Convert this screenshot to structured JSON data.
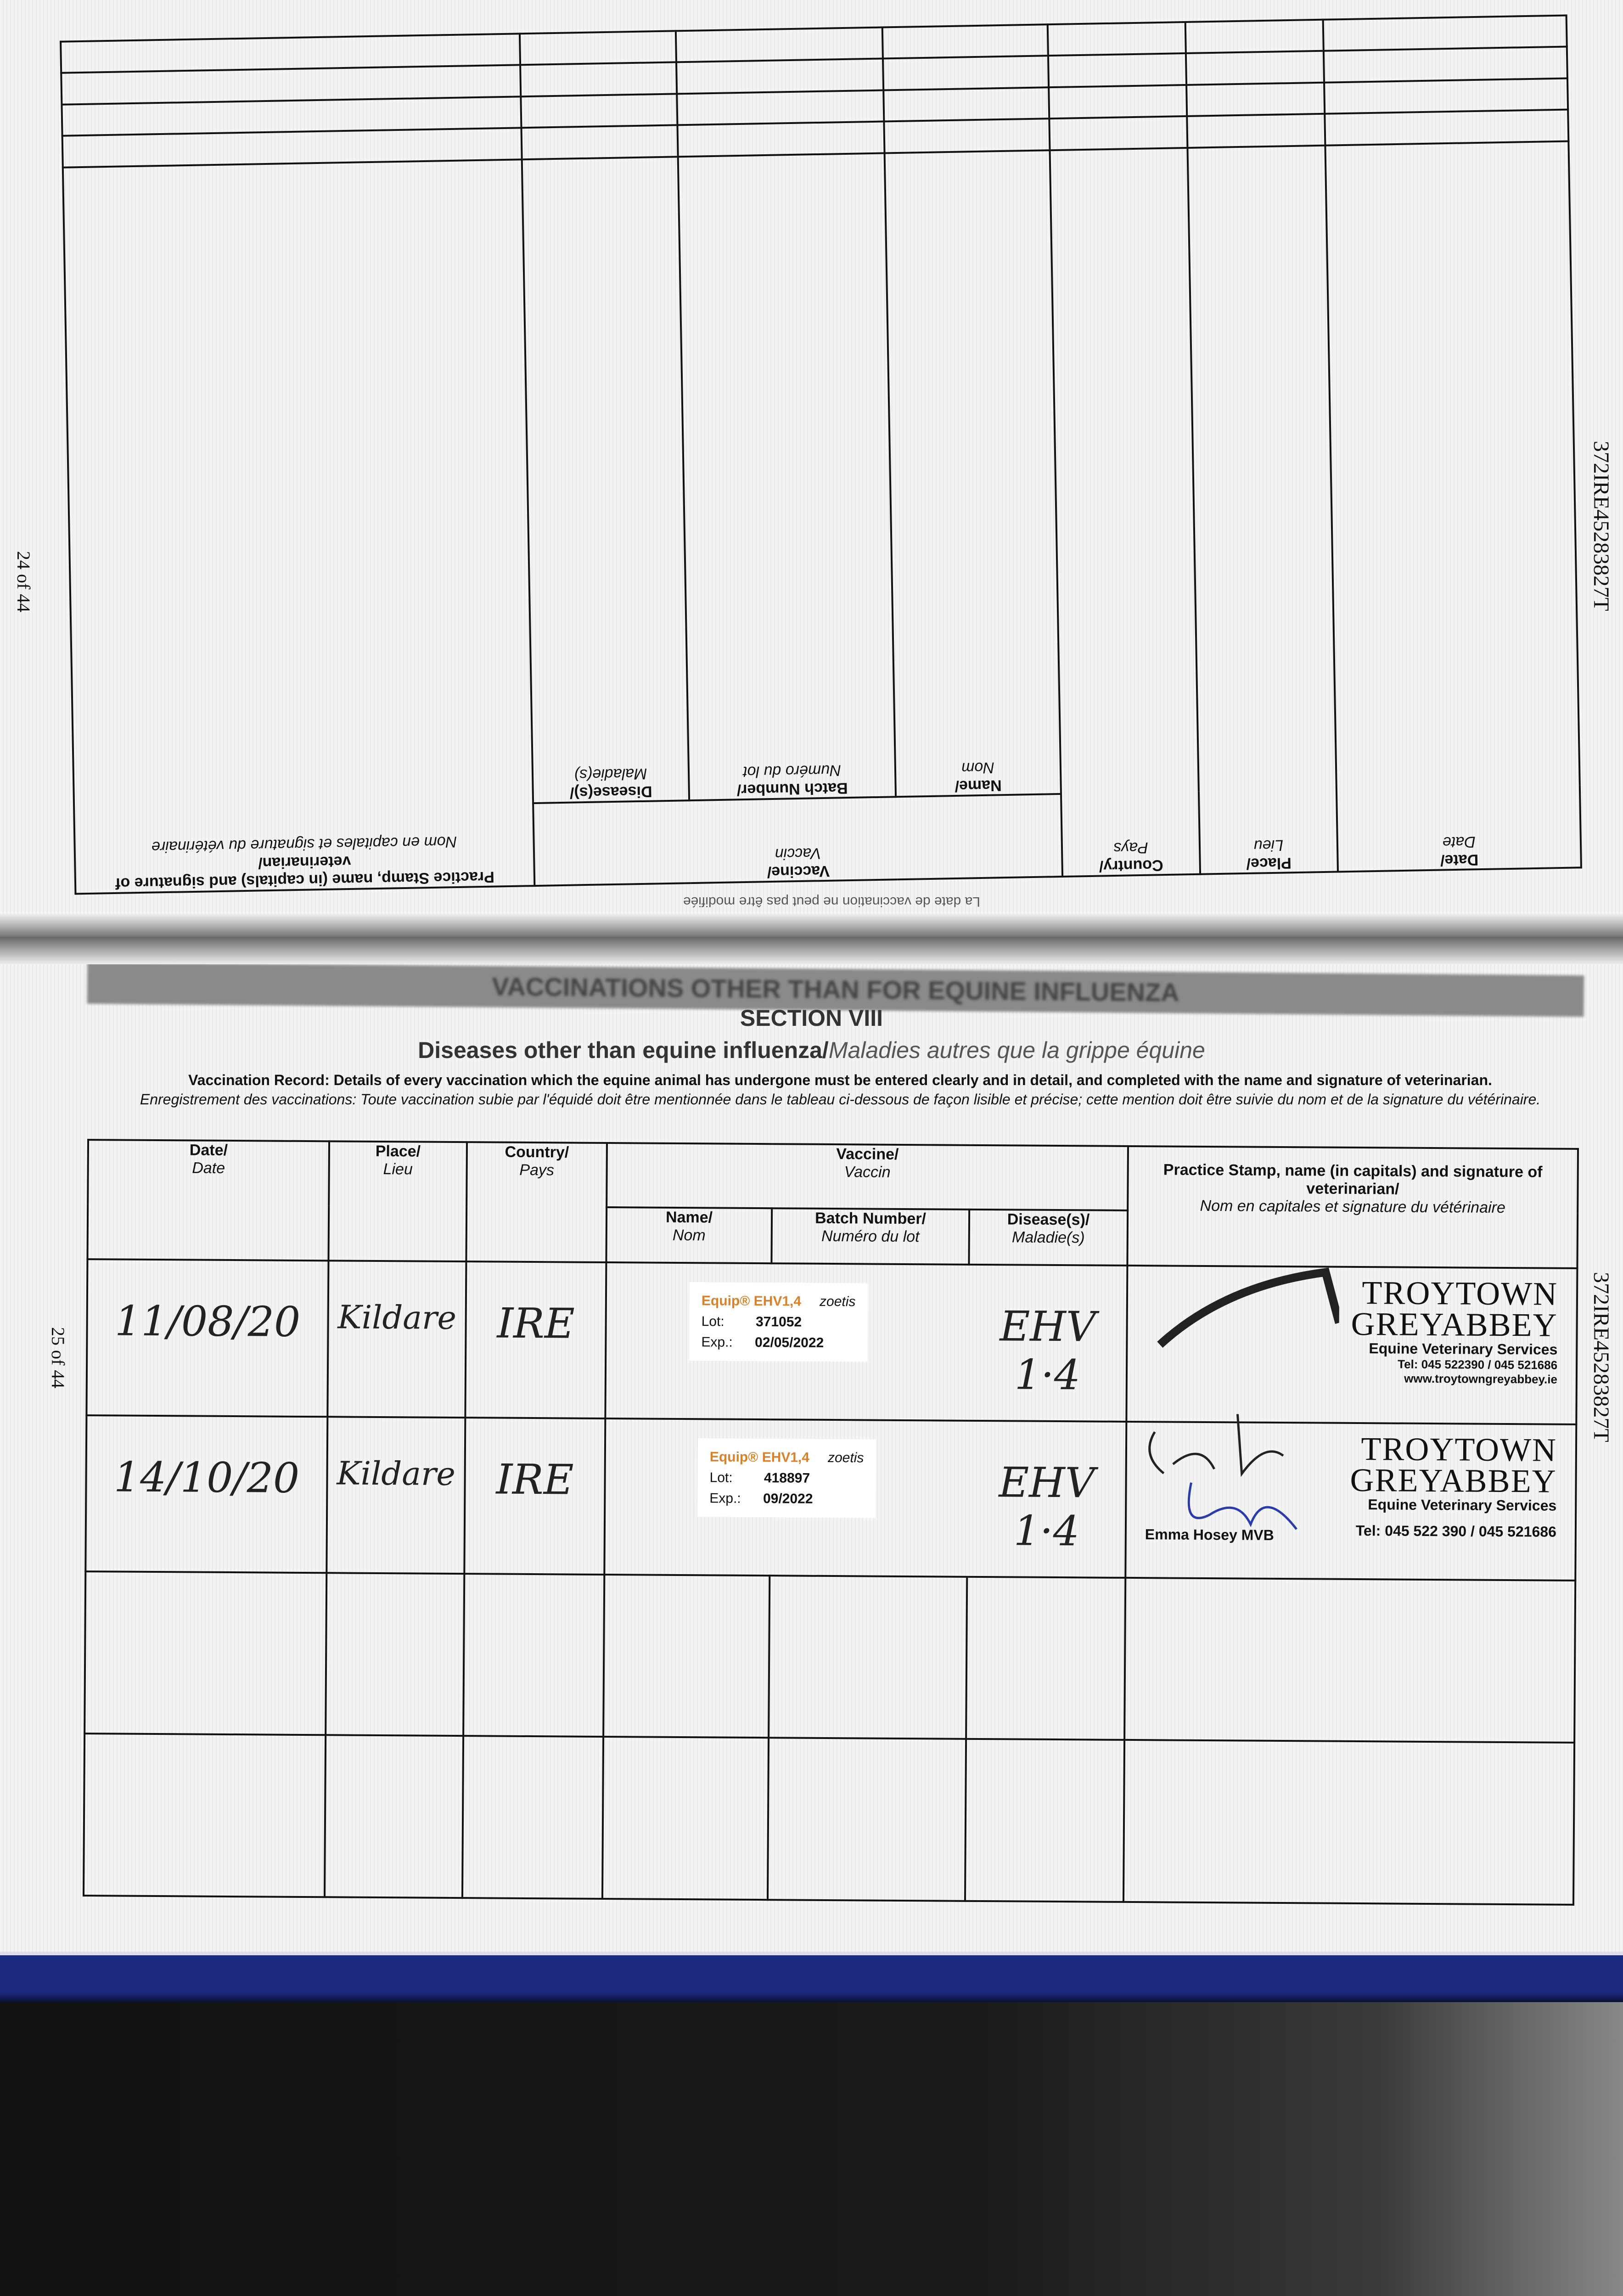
{
  "document_id": "372IRE45283827T",
  "top_page": {
    "page_number": "24 of 44",
    "headers": {
      "date": "Date/",
      "date_fr": "Date",
      "place": "Place/",
      "place_fr": "Lieu",
      "country": "Country/",
      "country_fr": "Pays",
      "vaccine": "Vaccine/",
      "vaccine_fr": "Vaccin",
      "name": "Name/",
      "name_fr": "Nom",
      "batch": "Batch Number/",
      "batch_fr": "Numéro du lot",
      "disease": "Disease(s)/",
      "disease_fr": "Maladie(s)",
      "stamp": "Practice Stamp, name (in capitals) and signature of veterinarian/",
      "stamp_fr": "Nom en capitales et signature du vétérinaire"
    },
    "footer_note": "La date de vaccination ne peut pas être modifiée"
  },
  "bottom_page": {
    "page_number": "25 of 44",
    "banner": "VACCINATIONS OTHER THAN FOR EQUINE INFLUENZA",
    "section": "SECTION VIII",
    "title": "Diseases other than equine influenza/",
    "title_fr": "Maladies autres que la grippe équine",
    "intro_en": "Vaccination Record: Details of every vaccination which the equine animal has undergone must be entered clearly and in detail, and completed with the name and signature of veterinarian.",
    "intro_fr": "Enregistrement des vaccinations: Toute vaccination subie par l'équidé doit être mentionnée dans le tableau ci-dessous de façon lisible et précise; cette mention doit être suivie du nom et de la signature du vétérinaire.",
    "headers": {
      "date": "Date/",
      "date_fr": "Date",
      "place": "Place/",
      "place_fr": "Lieu",
      "country": "Country/",
      "country_fr": "Pays",
      "vaccine": "Vaccine/",
      "vaccine_fr": "Vaccin",
      "name": "Name/",
      "name_fr": "Nom",
      "batch": "Batch Number/",
      "batch_fr": "Numéro du lot",
      "disease": "Disease(s)/",
      "disease_fr": "Maladie(s)",
      "stamp": "Practice Stamp, name (in capitals) and signature of veterinarian/",
      "stamp_fr": "Nom en capitales et signature du vétérinaire"
    },
    "rows": [
      {
        "date": "11/08/20",
        "place": "Kildare",
        "country": "IRE",
        "label_brand": "Equip® EHV1,4",
        "label_maker": "zoetis",
        "lot_label": "Lot:",
        "lot": "371052",
        "exp_label": "Exp.:",
        "exp": "02/05/2022",
        "disease": "EHV 1·4",
        "stamp": {
          "line1": "TROYTOWN",
          "line2": "GREYABBEY",
          "line3": "Equine Veterinary Services",
          "tel": "Tel: 045 522390 / 045 521686",
          "web": "www.troytowngreyabbey.ie"
        }
      },
      {
        "date": "14/10/20",
        "place": "Kildare",
        "country": "IRE",
        "label_brand": "Equip® EHV1,4",
        "label_maker": "zoetis",
        "lot_label": "Lot:",
        "lot": "418897",
        "exp_label": "Exp.:",
        "exp": "09/2022",
        "disease": "EHV 1·4",
        "stamp": {
          "line1": "TROYTOWN",
          "line2": "GREYABBEY",
          "line3": "Equine Veterinary Services",
          "vet": "Emma Hosey MVB",
          "tel": "Tel: 045 522 390 / 045 521686"
        }
      }
    ]
  },
  "colors": {
    "cover_blue": "#1b2a7c",
    "label_orange": "#d9822b",
    "signature_blue": "#2a3bb0"
  }
}
